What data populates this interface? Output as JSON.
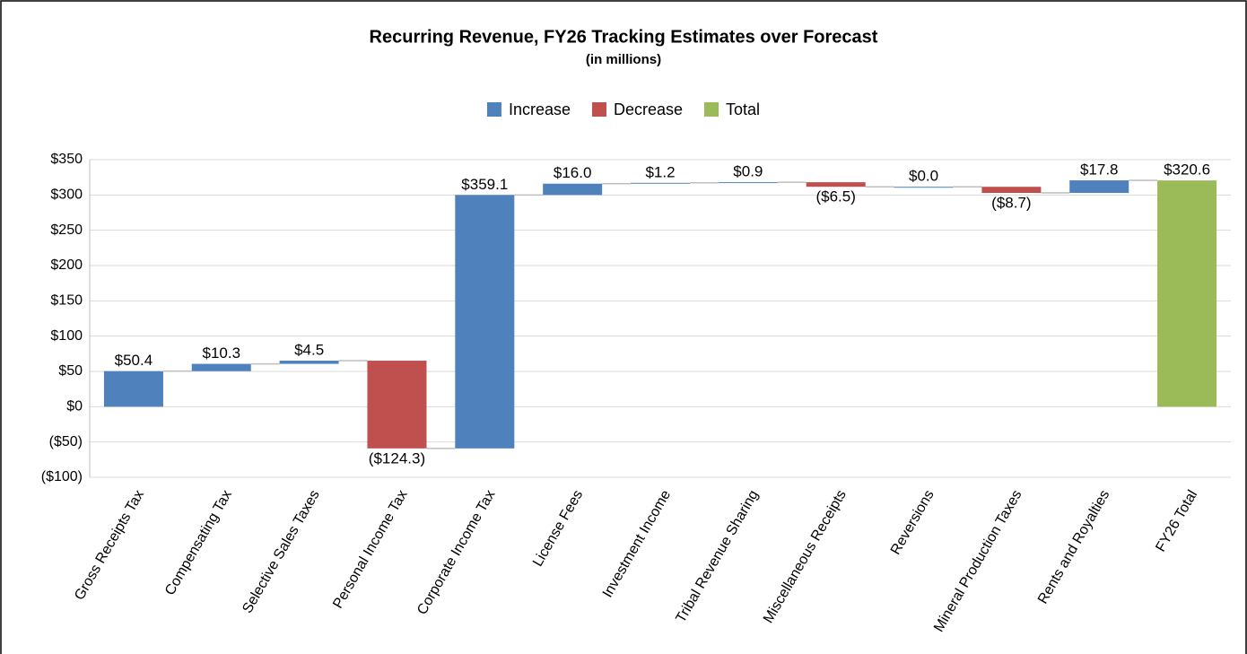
{
  "chart_data": {
    "type": "waterfall",
    "title": "Recurring Revenue, FY26 Tracking Estimates over Forecast",
    "subtitle": "(in millions)",
    "categories": [
      "Gross Receipts Tax",
      "Compensating Tax",
      "Selective Sales Taxes",
      "Personal Income Tax",
      "Corporate Income Tax",
      "License Fees",
      "Investment Income",
      "Tribal Revenue Sharing",
      "Miscellaneous Receipts",
      "Reversions",
      "Mineral Production Taxes",
      "Rents and Royalties",
      "FY26 Total"
    ],
    "series": [
      {
        "name": "Increase",
        "color": "#4f81bd",
        "values": [
          50.4,
          10.3,
          4.5,
          null,
          359.1,
          16.0,
          1.2,
          0.9,
          null,
          0.0,
          null,
          17.8,
          null
        ],
        "value_labels": [
          "$50.4",
          "$10.3",
          "$4.5",
          null,
          "$359.1",
          "$16.0",
          "$1.2",
          "$0.9",
          null,
          "$0.0",
          null,
          "$17.8",
          null
        ]
      },
      {
        "name": "Decrease",
        "color": "#c0504d",
        "values": [
          null,
          null,
          null,
          -124.3,
          null,
          null,
          null,
          null,
          -6.5,
          null,
          -8.7,
          null,
          null
        ],
        "value_labels": [
          null,
          null,
          null,
          "($124.3)",
          null,
          null,
          null,
          null,
          "($6.5)",
          null,
          "($8.7)",
          null,
          null
        ]
      },
      {
        "name": "Total",
        "color": "#9bbb59",
        "total": true,
        "values": [
          null,
          null,
          null,
          null,
          null,
          null,
          null,
          null,
          null,
          null,
          null,
          null,
          320.6
        ],
        "value_labels": [
          null,
          null,
          null,
          null,
          null,
          null,
          null,
          null,
          null,
          null,
          null,
          null,
          "$320.6"
        ]
      }
    ],
    "ylim": [
      -100,
      350
    ],
    "yticks": [
      {
        "value": -100,
        "label": "($100)"
      },
      {
        "value": -50,
        "label": "($50)"
      },
      {
        "value": 0,
        "label": "$0"
      },
      {
        "value": 50,
        "label": "$50"
      },
      {
        "value": 100,
        "label": "$100"
      },
      {
        "value": 150,
        "label": "$150"
      },
      {
        "value": 200,
        "label": "$200"
      },
      {
        "value": 250,
        "label": "$250"
      },
      {
        "value": 300,
        "label": "$300"
      },
      {
        "value": 350,
        "label": "$350"
      }
    ],
    "grid": true,
    "legend": "top"
  }
}
